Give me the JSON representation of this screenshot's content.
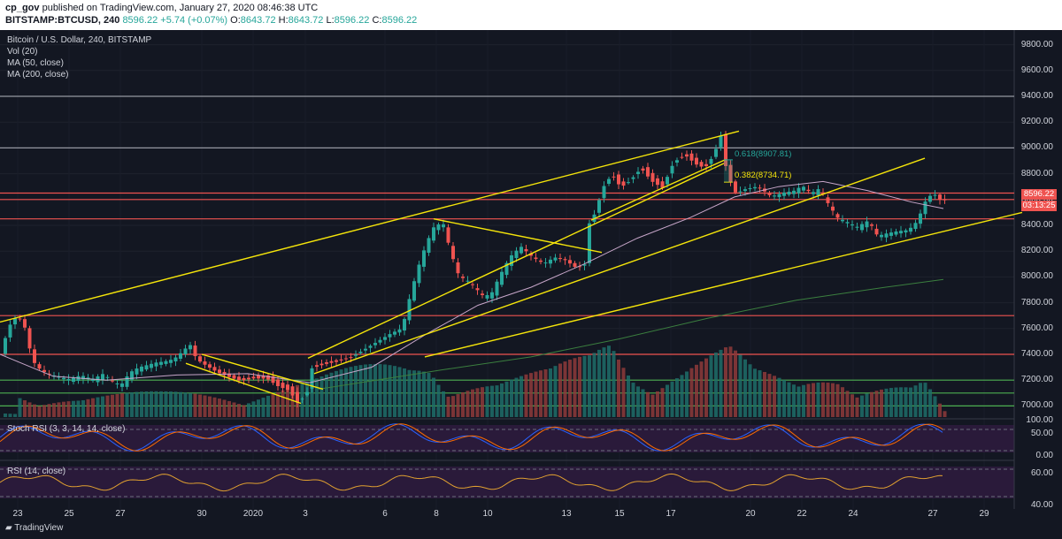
{
  "header": {
    "publisher": "cp_gov",
    "publish_text": "published on TradingView.com, January 27, 2020 08:46:38 UTC",
    "symbol": "BITSTAMP:BTCUSD, 240",
    "last_price": "8596.22",
    "change": "+5.74 (+0.07%)",
    "ohlc": {
      "o": "8643.72",
      "h": "8643.72",
      "l": "8596.22",
      "c": "8596.22"
    }
  },
  "legend": {
    "title": "Bitcoin / U.S. Dollar, 240, BITSTAMP",
    "items": [
      "Vol (20)",
      "MA (50, close)",
      "MA (200, close)"
    ]
  },
  "badges": {
    "price": "8596.22",
    "countdown": "03:13:25"
  },
  "fib_labels": [
    "0.618(8907.81)",
    "0.382(8734.71)"
  ],
  "stoch": {
    "title": "Stoch RSI (3, 3, 14, 14, close)",
    "ticks": [
      "100.00",
      "50.00",
      "0.00"
    ]
  },
  "rsi": {
    "title": "RSI (14, close)",
    "ticks": [
      "60.00",
      "40.00"
    ]
  },
  "branding": "TradingView",
  "colors": {
    "up": "#26a69a",
    "down": "#ef5350",
    "trend": "#f5e50a",
    "level_red": "#ef5350",
    "level_green": "#4caf50",
    "ma50": "#c7a6c9",
    "ma200": "#3b7f3f"
  },
  "chart_data": {
    "type": "candlestick",
    "x_ticks": [
      "23",
      "25",
      "27",
      "30",
      "2020",
      "3",
      "6",
      "8",
      "10",
      "13",
      "15",
      "17",
      "20",
      "22",
      "24",
      "27",
      "29"
    ],
    "y_ticks": [
      "9800.00",
      "9600.00",
      "9400.00",
      "9200.00",
      "9000.00",
      "8800.00",
      "8600.00",
      "8400.00",
      "8200.00",
      "8000.00",
      "7800.00",
      "7600.00",
      "7400.00",
      "7200.00",
      "7000.00"
    ],
    "ylim": [
      6900,
      9900
    ],
    "horizontal_levels": [
      {
        "price": 9400,
        "color": "#9598a1"
      },
      {
        "price": 9000,
        "color": "#9598a1"
      },
      {
        "price": 8650,
        "color": "#ef5350"
      },
      {
        "price": 8600,
        "color": "#ef5350"
      },
      {
        "price": 8450,
        "color": "#ef5350"
      },
      {
        "price": 7700,
        "color": "#ef5350"
      },
      {
        "price": 7400,
        "color": "#ef5350"
      },
      {
        "price": 7200,
        "color": "#4caf50"
      },
      {
        "price": 7100,
        "color": "#4caf50"
      },
      {
        "price": 7000,
        "color": "#4caf50"
      }
    ],
    "price_path": [
      [
        0,
        7300
      ],
      [
        8,
        7500
      ],
      [
        16,
        7650
      ],
      [
        24,
        7700
      ],
      [
        32,
        7600
      ],
      [
        40,
        7350
      ],
      [
        50,
        7270
      ],
      [
        60,
        7240
      ],
      [
        70,
        7220
      ],
      [
        82,
        7200
      ],
      [
        95,
        7230
      ],
      [
        108,
        7200
      ],
      [
        120,
        7240
      ],
      [
        132,
        7180
      ],
      [
        140,
        7150
      ],
      [
        150,
        7250
      ],
      [
        160,
        7290
      ],
      [
        170,
        7310
      ],
      [
        180,
        7330
      ],
      [
        190,
        7340
      ],
      [
        200,
        7360
      ],
      [
        210,
        7420
      ],
      [
        218,
        7480
      ],
      [
        222,
        7400
      ],
      [
        230,
        7340
      ],
      [
        240,
        7300
      ],
      [
        250,
        7260
      ],
      [
        262,
        7230
      ],
      [
        275,
        7200
      ],
      [
        290,
        7220
      ],
      [
        305,
        7220
      ],
      [
        318,
        7160
      ],
      [
        330,
        7130
      ],
      [
        340,
        7030
      ],
      [
        350,
        7100
      ],
      [
        356,
        7300
      ],
      [
        370,
        7330
      ],
      [
        385,
        7350
      ],
      [
        400,
        7380
      ],
      [
        415,
        7440
      ],
      [
        430,
        7500
      ],
      [
        445,
        7560
      ],
      [
        458,
        7600
      ],
      [
        465,
        7800
      ],
      [
        475,
        8050
      ],
      [
        485,
        8250
      ],
      [
        495,
        8400
      ],
      [
        505,
        8400
      ],
      [
        512,
        8200
      ],
      [
        522,
        8000
      ],
      [
        535,
        7950
      ],
      [
        548,
        7850
      ],
      [
        558,
        7850
      ],
      [
        568,
        8000
      ],
      [
        580,
        8150
      ],
      [
        592,
        8230
      ],
      [
        605,
        8150
      ],
      [
        618,
        8100
      ],
      [
        630,
        8150
      ],
      [
        642,
        8130
      ],
      [
        655,
        8070
      ],
      [
        664,
        8100
      ],
      [
        668,
        8400
      ],
      [
        676,
        8500
      ],
      [
        685,
        8700
      ],
      [
        695,
        8800
      ],
      [
        705,
        8700
      ],
      [
        715,
        8750
      ],
      [
        728,
        8850
      ],
      [
        740,
        8750
      ],
      [
        752,
        8700
      ],
      [
        765,
        8900
      ],
      [
        778,
        8950
      ],
      [
        790,
        8880
      ],
      [
        800,
        8850
      ],
      [
        810,
        8950
      ],
      [
        818,
        9100
      ],
      [
        822,
        8900
      ],
      [
        828,
        8750
      ],
      [
        835,
        8650
      ],
      [
        845,
        8680
      ],
      [
        860,
        8700
      ],
      [
        875,
        8620
      ],
      [
        890,
        8650
      ],
      [
        900,
        8660
      ],
      [
        910,
        8700
      ],
      [
        920,
        8640
      ],
      [
        930,
        8680
      ],
      [
        940,
        8550
      ],
      [
        950,
        8450
      ],
      [
        960,
        8420
      ],
      [
        972,
        8380
      ],
      [
        985,
        8430
      ],
      [
        995,
        8310
      ],
      [
        1005,
        8330
      ],
      [
        1018,
        8350
      ],
      [
        1030,
        8360
      ],
      [
        1040,
        8430
      ],
      [
        1050,
        8600
      ],
      [
        1058,
        8650
      ],
      [
        1066,
        8596
      ]
    ],
    "ma50_path": [
      [
        0,
        7400
      ],
      [
        60,
        7230
      ],
      [
        120,
        7200
      ],
      [
        200,
        7240
      ],
      [
        280,
        7250
      ],
      [
        350,
        7180
      ],
      [
        420,
        7300
      ],
      [
        480,
        7550
      ],
      [
        540,
        7780
      ],
      [
        600,
        7920
      ],
      [
        660,
        8100
      ],
      [
        720,
        8300
      ],
      [
        780,
        8460
      ],
      [
        830,
        8620
      ],
      [
        880,
        8700
      ],
      [
        930,
        8740
      ],
      [
        980,
        8670
      ],
      [
        1030,
        8580
      ],
      [
        1066,
        8530
      ]
    ],
    "ma200_path": [
      [
        360,
        7130
      ],
      [
        500,
        7280
      ],
      [
        600,
        7380
      ],
      [
        700,
        7520
      ],
      [
        800,
        7680
      ],
      [
        900,
        7820
      ],
      [
        1000,
        7920
      ],
      [
        1066,
        7980
      ]
    ],
    "trendlines": [
      {
        "from": [
          0,
          7650
        ],
        "to": [
          835,
          9130
        ]
      },
      {
        "from": [
          348,
          7370
        ],
        "to": [
          818,
          8880
        ]
      },
      {
        "from": [
          355,
          7250
        ],
        "to": [
          1045,
          8920
        ]
      },
      {
        "from": [
          480,
          7380
        ],
        "to": [
          1155,
          8500
        ]
      },
      {
        "from": [
          210,
          7330
        ],
        "to": [
          340,
          7020
        ]
      },
      {
        "from": [
          228,
          7400
        ],
        "to": [
          365,
          7130
        ]
      },
      {
        "from": [
          490,
          8450
        ],
        "to": [
          680,
          8190
        ]
      },
      {
        "from": [
          668,
          8440
        ],
        "to": [
          820,
          8910
        ]
      }
    ],
    "fib_levels": [
      {
        "price": 8907.81,
        "color": "#26a69a"
      },
      {
        "price": 8734.71,
        "color": "#f5e50a"
      }
    ],
    "volume_peaks": [
      [
        20,
        40
      ],
      [
        90,
        25
      ],
      [
        180,
        30
      ],
      [
        350,
        45
      ],
      [
        462,
        75
      ],
      [
        485,
        95
      ],
      [
        508,
        60
      ],
      [
        560,
        45
      ],
      [
        620,
        55
      ],
      [
        666,
        80
      ],
      [
        688,
        110
      ],
      [
        715,
        70
      ],
      [
        768,
        75
      ],
      [
        822,
        85
      ],
      [
        850,
        55
      ],
      [
        900,
        40
      ],
      [
        946,
        70
      ],
      [
        975,
        60
      ],
      [
        1028,
        40
      ],
      [
        1042,
        45
      ],
      [
        1066,
        6
      ]
    ]
  }
}
